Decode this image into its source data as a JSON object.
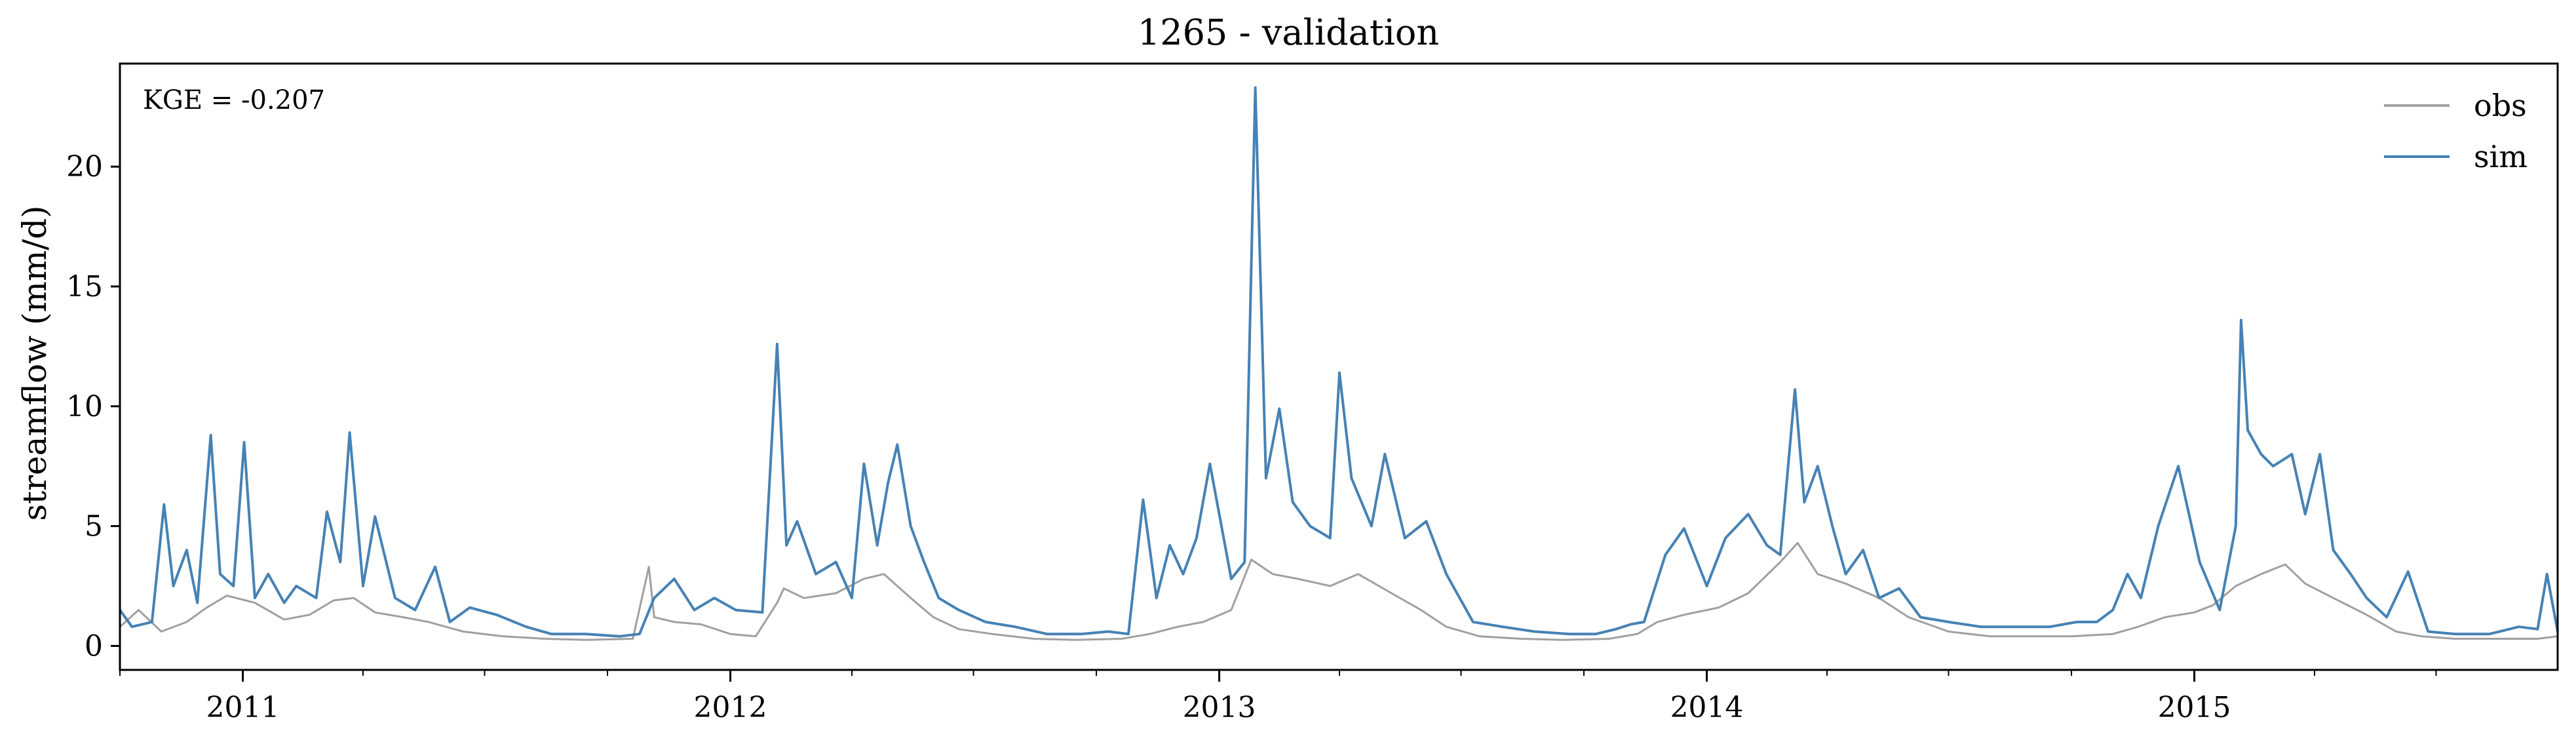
{
  "chart_data": {
    "type": "line",
    "title": "1265 - validation",
    "xlabel": "",
    "ylabel": "streamflow (mm/d)",
    "annotation": "KGE = -0.207",
    "x_range": [
      "2010-10-01",
      "2015-09-30"
    ],
    "ylim": [
      -1,
      24.3
    ],
    "y_ticks": [
      0,
      5,
      10,
      15,
      20
    ],
    "x_ticks": [
      "2011",
      "2012",
      "2013",
      "2014",
      "2015"
    ],
    "x_tick_dates": [
      "2011-01-01",
      "2012-01-01",
      "2013-01-01",
      "2014-01-01",
      "2015-01-01"
    ],
    "grid": false,
    "legend_position": "top-right",
    "series": [
      {
        "name": "obs",
        "color": "#a0a0a0",
        "x": [
          "2010-10-01",
          "2010-10-15",
          "2010-11-01",
          "2010-11-20",
          "2010-12-05",
          "2010-12-20",
          "2011-01-10",
          "2011-02-01",
          "2011-02-20",
          "2011-03-10",
          "2011-03-25",
          "2011-04-10",
          "2011-05-01",
          "2011-05-20",
          "2011-06-15",
          "2011-07-15",
          "2011-08-15",
          "2011-09-15",
          "2011-10-20",
          "2011-11-01",
          "2011-11-05",
          "2011-11-20",
          "2011-12-10",
          "2012-01-01",
          "2012-01-20",
          "2012-02-05",
          "2012-02-10",
          "2012-02-25",
          "2012-03-20",
          "2012-04-10",
          "2012-04-25",
          "2012-05-15",
          "2012-06-01",
          "2012-06-20",
          "2012-07-15",
          "2012-08-15",
          "2012-09-15",
          "2012-10-20",
          "2012-11-10",
          "2012-12-01",
          "2012-12-20",
          "2013-01-10",
          "2013-01-25",
          "2013-02-10",
          "2013-03-01",
          "2013-03-25",
          "2013-04-15",
          "2013-05-10",
          "2013-06-01",
          "2013-06-20",
          "2013-07-15",
          "2013-08-15",
          "2013-09-15",
          "2013-10-20",
          "2013-11-10",
          "2013-11-25",
          "2013-12-15",
          "2014-01-10",
          "2014-02-01",
          "2014-02-25",
          "2014-03-10",
          "2014-03-25",
          "2014-04-15",
          "2014-05-10",
          "2014-06-01",
          "2014-07-01",
          "2014-08-01",
          "2014-09-01",
          "2014-10-01",
          "2014-11-01",
          "2014-11-20",
          "2014-12-10",
          "2015-01-01",
          "2015-01-15",
          "2015-02-01",
          "2015-02-20",
          "2015-03-10",
          "2015-03-25",
          "2015-04-15",
          "2015-05-10",
          "2015-06-01",
          "2015-06-20",
          "2015-07-15",
          "2015-08-15",
          "2015-09-15",
          "2015-09-30"
        ],
        "y": [
          0.8,
          1.5,
          0.6,
          1.0,
          1.6,
          2.1,
          1.8,
          1.1,
          1.3,
          1.9,
          2.0,
          1.4,
          1.2,
          1.0,
          0.6,
          0.4,
          0.3,
          0.25,
          0.3,
          3.3,
          1.2,
          1.0,
          0.9,
          0.5,
          0.4,
          1.8,
          2.4,
          2.0,
          2.2,
          2.8,
          3.0,
          2.0,
          1.2,
          0.7,
          0.5,
          0.3,
          0.25,
          0.3,
          0.5,
          0.8,
          1.0,
          1.5,
          3.6,
          3.0,
          2.8,
          2.5,
          3.0,
          2.2,
          1.5,
          0.8,
          0.4,
          0.3,
          0.25,
          0.3,
          0.5,
          1.0,
          1.3,
          1.6,
          2.2,
          3.5,
          4.3,
          3.0,
          2.6,
          2.0,
          1.2,
          0.6,
          0.4,
          0.4,
          0.4,
          0.5,
          0.8,
          1.2,
          1.4,
          1.7,
          2.5,
          3.0,
          3.4,
          2.6,
          2.0,
          1.3,
          0.6,
          0.4,
          0.3,
          0.3,
          0.3,
          0.4
        ]
      },
      {
        "name": "sim",
        "color": "#4682b4",
        "x": [
          "2010-10-01",
          "2010-10-10",
          "2010-10-25",
          "2010-11-03",
          "2010-11-10",
          "2010-11-20",
          "2010-11-28",
          "2010-12-08",
          "2010-12-15",
          "2010-12-25",
          "2011-01-02",
          "2011-01-10",
          "2011-01-20",
          "2011-02-01",
          "2011-02-10",
          "2011-02-25",
          "2011-03-05",
          "2011-03-15",
          "2011-03-22",
          "2011-04-01",
          "2011-04-10",
          "2011-04-25",
          "2011-05-10",
          "2011-05-25",
          "2011-06-05",
          "2011-06-20",
          "2011-07-10",
          "2011-08-01",
          "2011-08-20",
          "2011-09-15",
          "2011-10-10",
          "2011-10-25",
          "2011-11-05",
          "2011-11-20",
          "2011-12-05",
          "2011-12-20",
          "2012-01-05",
          "2012-01-25",
          "2012-02-05",
          "2012-02-12",
          "2012-02-20",
          "2012-03-05",
          "2012-03-20",
          "2012-04-01",
          "2012-04-10",
          "2012-04-20",
          "2012-04-28",
          "2012-05-05",
          "2012-05-15",
          "2012-05-25",
          "2012-06-05",
          "2012-06-20",
          "2012-07-10",
          "2012-08-01",
          "2012-08-25",
          "2012-09-20",
          "2012-10-10",
          "2012-10-25",
          "2012-11-05",
          "2012-11-15",
          "2012-11-25",
          "2012-12-05",
          "2012-12-15",
          "2012-12-25",
          "2013-01-10",
          "2013-01-20",
          "2013-01-28",
          "2013-02-05",
          "2013-02-15",
          "2013-02-25",
          "2013-03-10",
          "2013-03-25",
          "2013-04-01",
          "2013-04-10",
          "2013-04-25",
          "2013-05-05",
          "2013-05-20",
          "2013-06-05",
          "2013-06-20",
          "2013-07-10",
          "2013-08-01",
          "2013-08-25",
          "2013-09-20",
          "2013-10-10",
          "2013-10-25",
          "2013-11-05",
          "2013-11-15",
          "2013-12-01",
          "2013-12-15",
          "2014-01-01",
          "2014-01-15",
          "2014-02-01",
          "2014-02-15",
          "2014-02-25",
          "2014-03-08",
          "2014-03-15",
          "2014-03-25",
          "2014-04-05",
          "2014-04-15",
          "2014-04-28",
          "2014-05-10",
          "2014-05-25",
          "2014-06-10",
          "2014-07-01",
          "2014-07-25",
          "2014-08-20",
          "2014-09-15",
          "2014-10-05",
          "2014-10-20",
          "2014-11-01",
          "2014-11-12",
          "2014-11-22",
          "2014-12-05",
          "2014-12-20",
          "2015-01-05",
          "2015-01-20",
          "2015-02-01",
          "2015-02-05",
          "2015-02-10",
          "2015-02-20",
          "2015-03-01",
          "2015-03-15",
          "2015-03-25",
          "2015-04-05",
          "2015-04-15",
          "2015-04-28",
          "2015-05-10",
          "2015-05-25",
          "2015-06-10",
          "2015-06-25",
          "2015-07-15",
          "2015-08-10",
          "2015-09-01",
          "2015-09-15",
          "2015-09-22",
          "2015-09-30"
        ],
        "y": [
          1.5,
          0.8,
          1.0,
          5.9,
          2.5,
          4.0,
          1.8,
          8.8,
          3.0,
          2.5,
          8.5,
          2.0,
          3.0,
          1.8,
          2.5,
          2.0,
          5.6,
          3.5,
          8.9,
          2.5,
          5.4,
          2.0,
          1.5,
          3.3,
          1.0,
          1.6,
          1.3,
          0.8,
          0.5,
          0.5,
          0.4,
          0.5,
          2.0,
          2.8,
          1.5,
          2.0,
          1.5,
          1.4,
          12.6,
          4.2,
          5.2,
          3.0,
          3.5,
          2.0,
          7.6,
          4.2,
          6.8,
          8.4,
          5.0,
          3.5,
          2.0,
          1.5,
          1.0,
          0.8,
          0.5,
          0.5,
          0.6,
          0.5,
          6.1,
          2.0,
          4.2,
          3.0,
          4.5,
          7.6,
          2.8,
          3.5,
          23.3,
          7.0,
          9.9,
          6.0,
          5.0,
          4.5,
          11.4,
          7.0,
          5.0,
          8.0,
          4.5,
          5.2,
          3.0,
          1.0,
          0.8,
          0.6,
          0.5,
          0.5,
          0.7,
          0.9,
          1.0,
          3.8,
          4.9,
          2.5,
          4.5,
          5.5,
          4.2,
          3.8,
          10.7,
          6.0,
          7.5,
          5.0,
          3.0,
          4.0,
          2.0,
          2.4,
          1.2,
          1.0,
          0.8,
          0.8,
          0.8,
          1.0,
          1.0,
          1.5,
          3.0,
          2.0,
          5.0,
          7.5,
          3.5,
          1.5,
          5.0,
          13.6,
          9.0,
          8.0,
          7.5,
          8.0,
          5.5,
          8.0,
          4.0,
          3.0,
          2.0,
          1.2,
          3.1,
          0.6,
          0.5,
          0.5,
          0.8,
          0.7,
          3.0,
          0.6
        ]
      }
    ]
  }
}
